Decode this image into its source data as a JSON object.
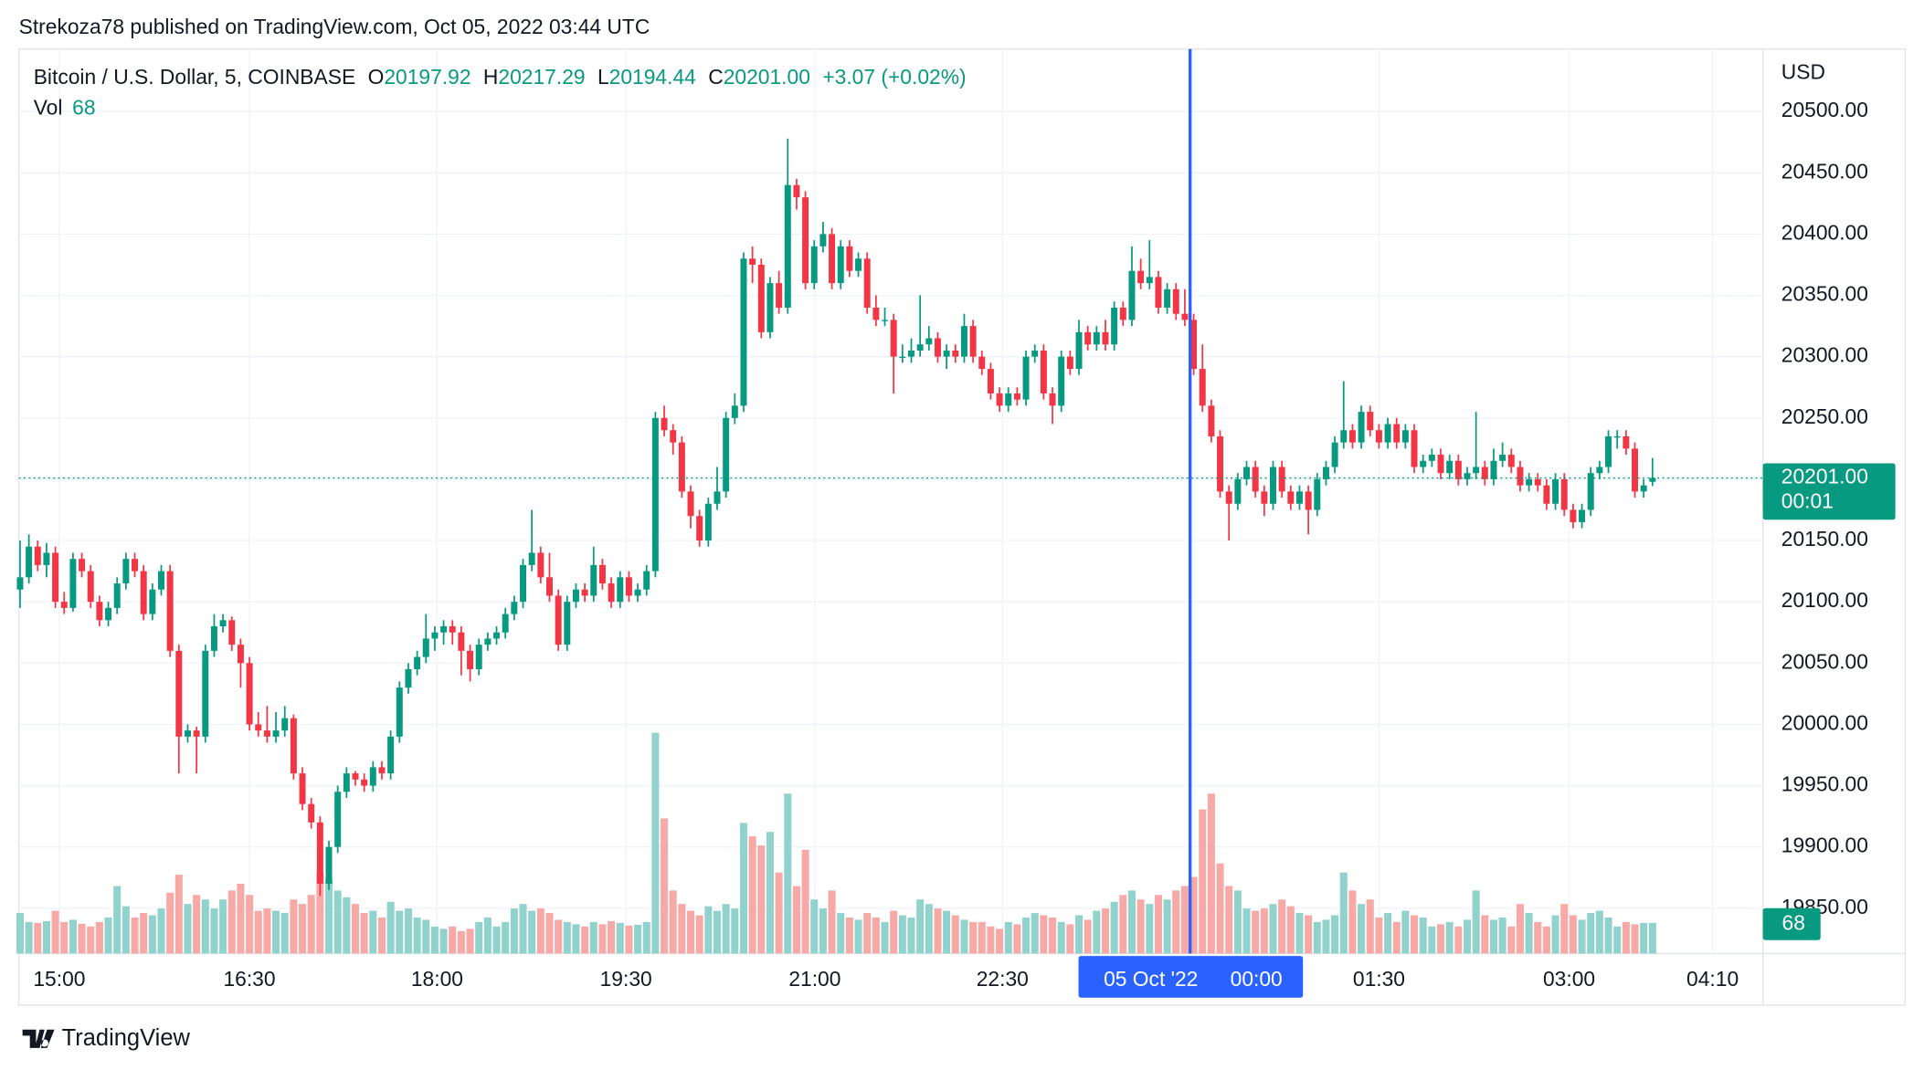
{
  "header": {
    "publisher_line": "Strekoza78 published on TradingView.com, Oct 05, 2022 03:44 UTC"
  },
  "chart_data": {
    "type": "candlestick",
    "symbol": "Bitcoin / U.S. Dollar, 5, COINBASE",
    "legend": {
      "fields": [
        {
          "key": "O",
          "value": "20197.92"
        },
        {
          "key": "H",
          "value": "20217.29"
        },
        {
          "key": "L",
          "value": "20194.44"
        },
        {
          "key": "C",
          "value": "20201.00"
        }
      ],
      "change": "+3.07 (+0.02%)",
      "volume_label": "Vol",
      "volume_value": "68"
    },
    "price_axis_unit": "USD",
    "last_price_label": "20201.00",
    "countdown": "00:01",
    "crosshair_date": "05 Oct '22",
    "crosshair_time": "00:00",
    "up_color": "#089981",
    "down_color": "#f23645",
    "up_volume_color": "#92d2cc",
    "down_volume_color": "#f7a9a7",
    "ylim": [
      19813,
      20551
    ],
    "yticks": [
      {
        "value": 19850,
        "label": "19850.00"
      },
      {
        "value": 19900,
        "label": "19900.00"
      },
      {
        "value": 19950,
        "label": "19950.00"
      },
      {
        "value": 20000,
        "label": "20000.00"
      },
      {
        "value": 20050,
        "label": "20050.00"
      },
      {
        "value": 20100,
        "label": "20100.00"
      },
      {
        "value": 20150,
        "label": "20150.00"
      },
      {
        "value": 20200,
        "label": "20200.00"
      },
      {
        "value": 20250,
        "label": "20250.00"
      },
      {
        "value": 20300,
        "label": "20300.00"
      },
      {
        "value": 20350,
        "label": "20350.00"
      },
      {
        "value": 20400,
        "label": "20400.00"
      },
      {
        "value": 20450,
        "label": "20450.00"
      },
      {
        "value": 20500,
        "label": "20500.00"
      }
    ],
    "xticks": [
      "15:00",
      "16:30",
      "18:00",
      "19:30",
      "21:00",
      "22:30",
      "01:30",
      "03:00",
      "04:10"
    ],
    "grid": true,
    "candles": [
      [
        20110,
        20150,
        20095,
        20120,
        90
      ],
      [
        20120,
        20155,
        20115,
        20145,
        70
      ],
      [
        20145,
        20150,
        20125,
        20130,
        68
      ],
      [
        20130,
        20148,
        20120,
        20140,
        72
      ],
      [
        20140,
        20145,
        20095,
        20100,
        95
      ],
      [
        20100,
        20108,
        20090,
        20095,
        70
      ],
      [
        20095,
        20140,
        20092,
        20135,
        75
      ],
      [
        20135,
        20140,
        20120,
        20125,
        66
      ],
      [
        20125,
        20130,
        20095,
        20100,
        60
      ],
      [
        20100,
        20105,
        20080,
        20085,
        70
      ],
      [
        20085,
        20100,
        20080,
        20095,
        80
      ],
      [
        20095,
        20120,
        20090,
        20115,
        150
      ],
      [
        20115,
        20140,
        20110,
        20135,
        105
      ],
      [
        20135,
        20140,
        20120,
        20125,
        80
      ],
      [
        20125,
        20130,
        20085,
        20090,
        90
      ],
      [
        20090,
        20115,
        20085,
        20110,
        85
      ],
      [
        20110,
        20130,
        20105,
        20125,
        100
      ],
      [
        20125,
        20130,
        20055,
        20060,
        135
      ],
      [
        20060,
        20065,
        19960,
        19990,
        175
      ],
      [
        19990,
        20000,
        19985,
        19995,
        110
      ],
      [
        19995,
        19998,
        19960,
        19990,
        130
      ],
      [
        19990,
        20065,
        19985,
        20060,
        120
      ],
      [
        20060,
        20090,
        20055,
        20080,
        100
      ],
      [
        20080,
        20090,
        20075,
        20085,
        120
      ],
      [
        20085,
        20088,
        20060,
        20065,
        140
      ],
      [
        20065,
        20070,
        20030,
        20050,
        155
      ],
      [
        20050,
        20055,
        19995,
        20000,
        130
      ],
      [
        20000,
        20010,
        19990,
        19995,
        95
      ],
      [
        19995,
        20015,
        19985,
        19990,
        100
      ],
      [
        19990,
        20010,
        19985,
        19995,
        95
      ],
      [
        19995,
        20015,
        19990,
        20005,
        90
      ],
      [
        20005,
        20008,
        19955,
        19960,
        120
      ],
      [
        19960,
        19965,
        19930,
        19935,
        110
      ],
      [
        19935,
        19940,
        19915,
        19920,
        130
      ],
      [
        19920,
        19925,
        19860,
        19870,
        180
      ],
      [
        19870,
        19905,
        19865,
        19900,
        165
      ],
      [
        19900,
        19950,
        19895,
        19945,
        140
      ],
      [
        19945,
        19965,
        19940,
        19960,
        125
      ],
      [
        19960,
        19962,
        19950,
        19955,
        110
      ],
      [
        19955,
        19960,
        19945,
        19950,
        90
      ],
      [
        19950,
        19970,
        19945,
        19965,
        95
      ],
      [
        19965,
        19970,
        19955,
        19960,
        80
      ],
      [
        19960,
        19995,
        19955,
        19990,
        115
      ],
      [
        19990,
        20035,
        19985,
        20030,
        95
      ],
      [
        20030,
        20050,
        20025,
        20045,
        100
      ],
      [
        20045,
        20060,
        20040,
        20055,
        80
      ],
      [
        20055,
        20090,
        20050,
        20070,
        75
      ],
      [
        20070,
        20080,
        20060,
        20075,
        60
      ],
      [
        20075,
        20085,
        20065,
        20080,
        55
      ],
      [
        20080,
        20085,
        20065,
        20075,
        60
      ],
      [
        20075,
        20080,
        20040,
        20060,
        50
      ],
      [
        20060,
        20065,
        20035,
        20045,
        55
      ],
      [
        20045,
        20070,
        20040,
        20065,
        70
      ],
      [
        20065,
        20075,
        20060,
        20070,
        80
      ],
      [
        20070,
        20080,
        20065,
        20075,
        60
      ],
      [
        20075,
        20095,
        20070,
        20090,
        70
      ],
      [
        20090,
        20105,
        20085,
        20100,
        100
      ],
      [
        20100,
        20135,
        20095,
        20130,
        110
      ],
      [
        20130,
        20175,
        20125,
        20140,
        95
      ],
      [
        20140,
        20145,
        20115,
        20120,
        100
      ],
      [
        20120,
        20140,
        20100,
        20105,
        90
      ],
      [
        20105,
        20110,
        20060,
        20065,
        75
      ],
      [
        20065,
        20105,
        20060,
        20100,
        70
      ],
      [
        20100,
        20115,
        20095,
        20110,
        65
      ],
      [
        20110,
        20115,
        20100,
        20105,
        60
      ],
      [
        20105,
        20145,
        20100,
        20130,
        70
      ],
      [
        20130,
        20135,
        20110,
        20115,
        65
      ],
      [
        20115,
        20120,
        20095,
        20100,
        72
      ],
      [
        20100,
        20125,
        20095,
        20120,
        68
      ],
      [
        20120,
        20125,
        20100,
        20105,
        62
      ],
      [
        20105,
        20115,
        20100,
        20110,
        64
      ],
      [
        20110,
        20130,
        20105,
        20125,
        70
      ],
      [
        20125,
        20255,
        20120,
        20250,
        490
      ],
      [
        20250,
        20260,
        20235,
        20240,
        300
      ],
      [
        20240,
        20245,
        20220,
        20230,
        140
      ],
      [
        20230,
        20235,
        20185,
        20190,
        110
      ],
      [
        20190,
        20195,
        20160,
        20170,
        95
      ],
      [
        20170,
        20175,
        20145,
        20150,
        85
      ],
      [
        20150,
        20185,
        20145,
        20180,
        105
      ],
      [
        20180,
        20210,
        20175,
        20190,
        95
      ],
      [
        20190,
        20255,
        20185,
        20250,
        110
      ],
      [
        20250,
        20270,
        20245,
        20260,
        100
      ],
      [
        20260,
        20385,
        20255,
        20380,
        290
      ],
      [
        20380,
        20390,
        20360,
        20375,
        260
      ],
      [
        20375,
        20380,
        20315,
        20320,
        240
      ],
      [
        20320,
        20365,
        20315,
        20360,
        270
      ],
      [
        20360,
        20370,
        20335,
        20340,
        180
      ],
      [
        20340,
        20478,
        20335,
        20440,
        355
      ],
      [
        20440,
        20445,
        20420,
        20430,
        150
      ],
      [
        20430,
        20435,
        20355,
        20360,
        230
      ],
      [
        20360,
        20395,
        20355,
        20390,
        120
      ],
      [
        20390,
        20410,
        20385,
        20400,
        100
      ],
      [
        20400,
        20405,
        20355,
        20360,
        140
      ],
      [
        20360,
        20395,
        20355,
        20390,
        90
      ],
      [
        20390,
        20395,
        20365,
        20370,
        80
      ],
      [
        20370,
        20385,
        20365,
        20380,
        75
      ],
      [
        20380,
        20385,
        20335,
        20340,
        90
      ],
      [
        20340,
        20350,
        20325,
        20330,
        80
      ],
      [
        20330,
        20340,
        20325,
        20330,
        70
      ],
      [
        20330,
        20335,
        20270,
        20300,
        95
      ],
      [
        20300,
        20310,
        20295,
        20300,
        85
      ],
      [
        20300,
        20315,
        20295,
        20305,
        80
      ],
      [
        20305,
        20350,
        20300,
        20310,
        120
      ],
      [
        20310,
        20325,
        20305,
        20315,
        110
      ],
      [
        20315,
        20320,
        20295,
        20300,
        100
      ],
      [
        20300,
        20310,
        20290,
        20305,
        95
      ],
      [
        20305,
        20310,
        20295,
        20300,
        85
      ],
      [
        20300,
        20335,
        20295,
        20325,
        75
      ],
      [
        20325,
        20330,
        20295,
        20300,
        70
      ],
      [
        20300,
        20305,
        20285,
        20290,
        70
      ],
      [
        20290,
        20295,
        20265,
        20270,
        60
      ],
      [
        20270,
        20275,
        20255,
        20260,
        55
      ],
      [
        20260,
        20275,
        20255,
        20270,
        70
      ],
      [
        20270,
        20275,
        20260,
        20265,
        65
      ],
      [
        20265,
        20305,
        20260,
        20300,
        80
      ],
      [
        20300,
        20310,
        20295,
        20305,
        90
      ],
      [
        20305,
        20310,
        20265,
        20270,
        85
      ],
      [
        20270,
        20275,
        20245,
        20260,
        80
      ],
      [
        20260,
        20305,
        20255,
        20300,
        70
      ],
      [
        20300,
        20305,
        20285,
        20290,
        65
      ],
      [
        20290,
        20330,
        20285,
        20320,
        85
      ],
      [
        20320,
        20325,
        20305,
        20310,
        75
      ],
      [
        20310,
        20325,
        20305,
        20320,
        95
      ],
      [
        20320,
        20330,
        20305,
        20310,
        100
      ],
      [
        20310,
        20345,
        20305,
        20340,
        115
      ],
      [
        20340,
        20345,
        20325,
        20330,
        130
      ],
      [
        20330,
        20390,
        20325,
        20370,
        140
      ],
      [
        20370,
        20380,
        20355,
        20360,
        120
      ],
      [
        20360,
        20395,
        20355,
        20365,
        110
      ],
      [
        20365,
        20370,
        20335,
        20340,
        130
      ],
      [
        20340,
        20360,
        20335,
        20355,
        120
      ],
      [
        20355,
        20360,
        20330,
        20335,
        140
      ],
      [
        20335,
        20355,
        20325,
        20330,
        150
      ],
      [
        20330,
        20335,
        20285,
        20290,
        170
      ],
      [
        20290,
        20310,
        20255,
        20260,
        320
      ],
      [
        20260,
        20265,
        20230,
        20235,
        355
      ],
      [
        20235,
        20240,
        20185,
        20190,
        200
      ],
      [
        20190,
        20195,
        20150,
        20180,
        150
      ],
      [
        20180,
        20205,
        20175,
        20200,
        140
      ],
      [
        20200,
        20215,
        20195,
        20210,
        100
      ],
      [
        20210,
        20215,
        20185,
        20190,
        95
      ],
      [
        20190,
        20195,
        20170,
        20180,
        100
      ],
      [
        20180,
        20215,
        20175,
        20210,
        110
      ],
      [
        20210,
        20215,
        20185,
        20190,
        120
      ],
      [
        20190,
        20195,
        20175,
        20180,
        105
      ],
      [
        20180,
        20195,
        20175,
        20190,
        90
      ],
      [
        20190,
        20195,
        20155,
        20175,
        85
      ],
      [
        20175,
        20205,
        20170,
        20200,
        70
      ],
      [
        20200,
        20215,
        20195,
        20210,
        75
      ],
      [
        20210,
        20235,
        20205,
        20230,
        85
      ],
      [
        20230,
        20280,
        20225,
        20240,
        180
      ],
      [
        20240,
        20245,
        20225,
        20230,
        140
      ],
      [
        20230,
        20260,
        20225,
        20255,
        110
      ],
      [
        20255,
        20260,
        20235,
        20240,
        120
      ],
      [
        20240,
        20245,
        20225,
        20230,
        80
      ],
      [
        20230,
        20250,
        20225,
        20245,
        90
      ],
      [
        20245,
        20250,
        20225,
        20230,
        70
      ],
      [
        20230,
        20245,
        20225,
        20240,
        95
      ],
      [
        20240,
        20245,
        20205,
        20210,
        85
      ],
      [
        20210,
        20220,
        20205,
        20215,
        80
      ],
      [
        20215,
        20225,
        20210,
        20220,
        60
      ],
      [
        20220,
        20225,
        20200,
        20205,
        65
      ],
      [
        20205,
        20220,
        20200,
        20215,
        70
      ],
      [
        20215,
        20220,
        20195,
        20200,
        60
      ],
      [
        20200,
        20210,
        20195,
        20205,
        75
      ],
      [
        20205,
        20255,
        20200,
        20210,
        140
      ],
      [
        20210,
        20215,
        20195,
        20200,
        85
      ],
      [
        20200,
        20225,
        20195,
        20215,
        75
      ],
      [
        20215,
        20230,
        20210,
        20220,
        80
      ],
      [
        20220,
        20225,
        20205,
        20210,
        60
      ],
      [
        20210,
        20215,
        20190,
        20195,
        110
      ],
      [
        20195,
        20205,
        20190,
        20200,
        90
      ],
      [
        20200,
        20205,
        20190,
        20195,
        70
      ],
      [
        20195,
        20200,
        20175,
        20180,
        60
      ],
      [
        20180,
        20205,
        20175,
        20200,
        85
      ],
      [
        20200,
        20205,
        20170,
        20175,
        110
      ],
      [
        20175,
        20180,
        20160,
        20165,
        85
      ],
      [
        20165,
        20180,
        20160,
        20175,
        75
      ],
      [
        20175,
        20210,
        20170,
        20205,
        90
      ],
      [
        20205,
        20215,
        20200,
        20210,
        95
      ],
      [
        20210,
        20240,
        20205,
        20235,
        80
      ],
      [
        20235,
        20240,
        20225,
        20235,
        60
      ],
      [
        20235,
        20240,
        20220,
        20225,
        70
      ],
      [
        20225,
        20230,
        20185,
        20190,
        65
      ],
      [
        20190,
        20200,
        20185,
        20195,
        68
      ],
      [
        20197.92,
        20217.29,
        20194.44,
        20201,
        68
      ]
    ]
  },
  "footer": {
    "brand": "TradingView"
  }
}
